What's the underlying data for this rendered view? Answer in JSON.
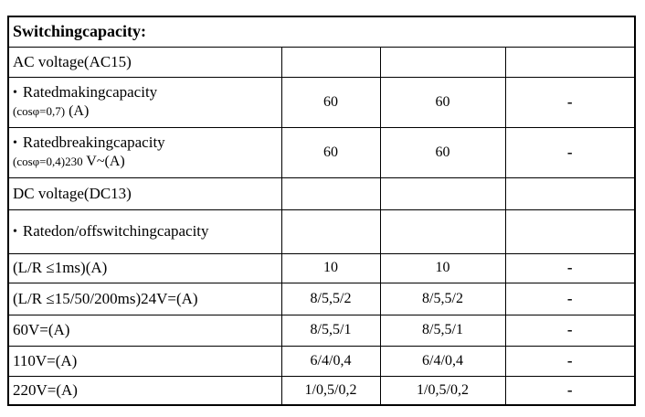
{
  "page": {
    "background_color": "#ffffff",
    "border_color": "#000000",
    "text_color": "#000000"
  },
  "table": {
    "title": "Switchingcapacity:",
    "bullet_glyph": "•",
    "dash_glyph": "-",
    "rows": [
      {
        "kind": "plain",
        "bullet": false,
        "label": "AC voltage(AC15)",
        "sub_small": "",
        "sub_rest": "",
        "values": [
          "",
          "",
          ""
        ]
      },
      {
        "kind": "two-line",
        "bullet": true,
        "label": "Ratedmakingcapacity",
        "sub_small": "(cosφ=0,7)",
        "sub_rest": " (A)",
        "values": [
          "60",
          "60",
          "-"
        ]
      },
      {
        "kind": "two-line",
        "bullet": true,
        "label": "Ratedbreakingcapacity",
        "sub_small": "(cosφ=0,4)230",
        "sub_rest": " V~(A)",
        "values": [
          "60",
          "60",
          "-"
        ]
      },
      {
        "kind": "plain",
        "bullet": false,
        "label": "DC voltage(DC13)",
        "sub_small": "",
        "sub_rest": "",
        "values": [
          "",
          "",
          ""
        ]
      },
      {
        "kind": "plain",
        "bullet": true,
        "label": "Ratedon/offswitchingcapacity",
        "sub_small": "",
        "sub_rest": "",
        "values": [
          "",
          "",
          ""
        ]
      },
      {
        "kind": "plain",
        "bullet": false,
        "label": "(L/R ≤1ms)(A)",
        "sub_small": "",
        "sub_rest": "",
        "values": [
          "10",
          "10",
          "-"
        ]
      },
      {
        "kind": "plain",
        "bullet": false,
        "label": "(L/R ≤15/50/200ms)24V=(A)",
        "sub_small": "",
        "sub_rest": "",
        "values": [
          "8/5,5/2",
          "8/5,5/2",
          "-"
        ]
      },
      {
        "kind": "plain",
        "bullet": false,
        "label": "60V=(A)",
        "sub_small": "",
        "sub_rest": "",
        "values": [
          "8/5,5/1",
          "8/5,5/1",
          "-"
        ]
      },
      {
        "kind": "plain",
        "bullet": false,
        "label": "110V=(A)",
        "sub_small": "",
        "sub_rest": "",
        "values": [
          "6/4/0,4",
          "6/4/0,4",
          "-"
        ]
      },
      {
        "kind": "plain",
        "bullet": false,
        "label": "220V=(A)",
        "sub_small": "",
        "sub_rest": "",
        "values": [
          "1/0,5/0,2",
          "1/0,5/0,2",
          "-"
        ]
      }
    ]
  }
}
